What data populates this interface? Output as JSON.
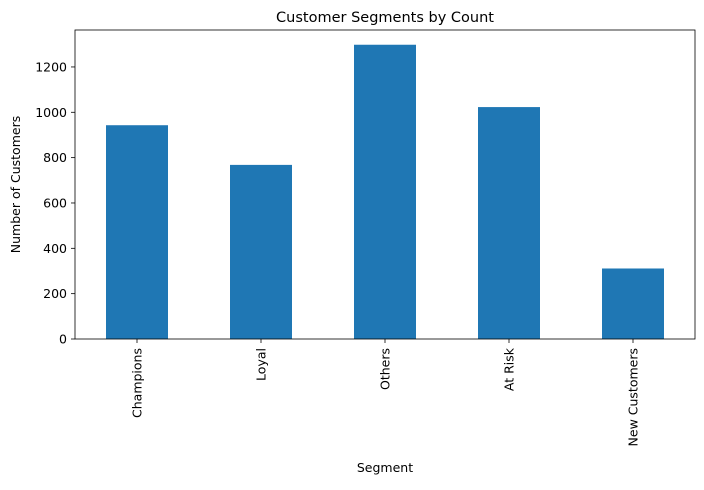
{
  "chart_data": {
    "type": "bar",
    "title": "Customer Segments by Count",
    "xlabel": "Segment",
    "ylabel": "Number of Customers",
    "categories": [
      "Champions",
      "Loyal",
      "Others",
      "At Risk",
      "New Customers"
    ],
    "values": [
      943,
      768,
      1298,
      1023,
      311
    ],
    "ylim": [
      0,
      1363
    ],
    "yticks": [
      0,
      200,
      400,
      600,
      800,
      1000,
      1200
    ],
    "bar_color": "#1f77b4",
    "grid": false,
    "legend": "none"
  }
}
